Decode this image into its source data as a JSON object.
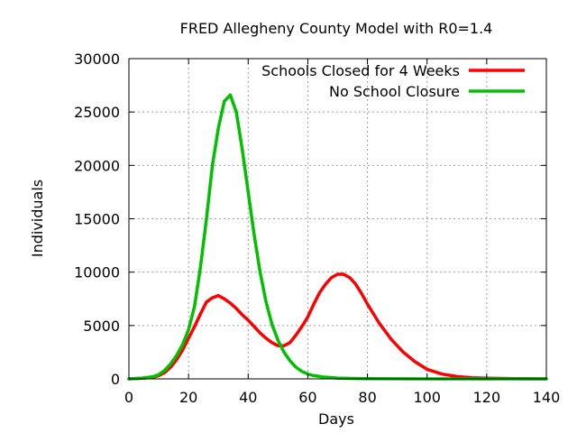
{
  "chart_data": {
    "type": "line",
    "title": "FRED Allegheny County Model with R0=1.4",
    "xlabel": "Days",
    "ylabel": "Individuals",
    "xlim": [
      0,
      140
    ],
    "ylim": [
      0,
      30000
    ],
    "xticks": [
      0,
      20,
      40,
      60,
      80,
      100,
      120,
      140
    ],
    "yticks": [
      0,
      5000,
      10000,
      15000,
      20000,
      25000,
      30000
    ],
    "grid": true,
    "legend_position": "top-right",
    "series": [
      {
        "name": "Schools Closed for 4 Weeks",
        "color": "#ff0000",
        "x": [
          0,
          4,
          8,
          10,
          12,
          14,
          16,
          18,
          20,
          22,
          24,
          26,
          28,
          30,
          32,
          34,
          36,
          38,
          40,
          42,
          44,
          46,
          48,
          50,
          52,
          54,
          56,
          58,
          60,
          62,
          64,
          66,
          68,
          70,
          72,
          74,
          76,
          78,
          80,
          84,
          88,
          92,
          96,
          100,
          105,
          110,
          115,
          120,
          130,
          140
        ],
        "y": [
          0,
          50,
          150,
          300,
          600,
          1100,
          1800,
          2700,
          3800,
          4900,
          6100,
          7200,
          7600,
          7800,
          7500,
          7100,
          6600,
          6000,
          5500,
          4900,
          4300,
          3800,
          3400,
          3100,
          3100,
          3400,
          4100,
          4900,
          5800,
          7000,
          8100,
          8900,
          9500,
          9800,
          9800,
          9500,
          8900,
          8000,
          7000,
          5200,
          3700,
          2500,
          1600,
          900,
          450,
          220,
          110,
          60,
          20,
          0
        ]
      },
      {
        "name": "No School Closure",
        "color": "#00c000",
        "x": [
          0,
          4,
          8,
          10,
          12,
          14,
          16,
          18,
          20,
          22,
          24,
          26,
          28,
          30,
          32,
          34,
          36,
          38,
          40,
          42,
          44,
          46,
          48,
          50,
          52,
          54,
          56,
          58,
          60,
          62,
          65,
          70,
          75,
          80,
          90,
          100,
          120,
          140
        ],
        "y": [
          0,
          60,
          200,
          400,
          800,
          1400,
          2200,
          3200,
          4600,
          6800,
          10500,
          15000,
          20000,
          23500,
          26000,
          26600,
          25000,
          21500,
          17500,
          13500,
          10000,
          7200,
          5100,
          3600,
          2500,
          1700,
          1100,
          700,
          450,
          300,
          180,
          80,
          40,
          20,
          5,
          0,
          0,
          0
        ]
      }
    ]
  }
}
